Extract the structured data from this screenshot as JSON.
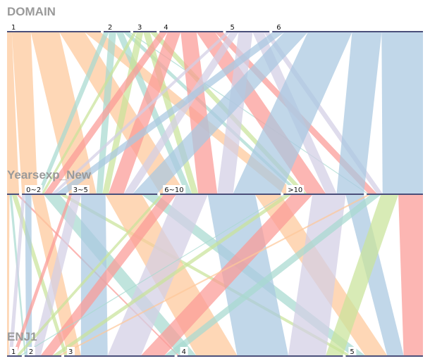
{
  "chart_data": {
    "type": "parallel-sets",
    "dimensions": [
      {
        "name": "DOMAIN",
        "categories": [
          "1",
          "2",
          "3",
          "4",
          "5",
          "6"
        ],
        "shares": [
          0.28,
          0.08,
          0.07,
          0.19,
          0.13,
          0.45
        ]
      },
      {
        "name": "Yearsexp_New",
        "categories": [
          "",
          "0~2",
          "3~5",
          "6~10",
          ">10",
          ""
        ],
        "shares": [
          0.03,
          0.11,
          0.22,
          0.3,
          0.2,
          0.14
        ]
      },
      {
        "name": "ENJ1",
        "categories": [
          "1",
          "2",
          "3",
          "4",
          "5"
        ],
        "shares": [
          0.04,
          0.1,
          0.3,
          0.45,
          0.21
        ]
      }
    ],
    "colors": {
      "1": "#fdc89a",
      "2": "#a7dad0",
      "3": "#c9e39a",
      "4": "#fb9a96",
      "5": "#d2cfe4",
      "6": "#a9c8e0"
    },
    "flows_domain_years": [
      [
        0,
        0,
        3
      ],
      [
        0,
        1,
        12
      ],
      [
        0,
        2,
        18
      ],
      [
        0,
        3,
        16
      ],
      [
        0,
        4,
        10
      ],
      [
        1,
        1,
        3
      ],
      [
        1,
        2,
        4
      ],
      [
        1,
        3,
        4
      ],
      [
        1,
        4,
        3
      ],
      [
        1,
        5,
        1
      ],
      [
        2,
        1,
        2
      ],
      [
        2,
        2,
        4
      ],
      [
        2,
        3,
        4
      ],
      [
        2,
        4,
        4
      ],
      [
        3,
        1,
        6
      ],
      [
        3,
        2,
        10
      ],
      [
        3,
        3,
        12
      ],
      [
        3,
        4,
        14
      ],
      [
        3,
        5,
        6
      ],
      [
        4,
        1,
        3
      ],
      [
        4,
        2,
        6
      ],
      [
        4,
        3,
        10
      ],
      [
        4,
        4,
        8
      ],
      [
        4,
        5,
        4
      ],
      [
        5,
        1,
        8
      ],
      [
        5,
        2,
        16
      ],
      [
        5,
        3,
        30
      ],
      [
        5,
        4,
        20
      ],
      [
        5,
        5,
        28
      ]
    ],
    "flows_years_enj": [
      [
        0,
        0,
        1
      ],
      [
        0,
        1,
        1
      ],
      [
        0,
        2,
        2
      ],
      [
        0,
        3,
        1
      ],
      [
        1,
        0,
        2
      ],
      [
        1,
        1,
        4
      ],
      [
        1,
        2,
        8
      ],
      [
        1,
        3,
        10
      ],
      [
        1,
        4,
        4
      ],
      [
        2,
        0,
        2
      ],
      [
        2,
        1,
        6
      ],
      [
        2,
        2,
        16
      ],
      [
        2,
        3,
        24
      ],
      [
        2,
        4,
        10
      ],
      [
        3,
        0,
        2
      ],
      [
        3,
        1,
        8
      ],
      [
        3,
        2,
        20
      ],
      [
        3,
        3,
        30
      ],
      [
        3,
        4,
        16
      ],
      [
        4,
        0,
        1
      ],
      [
        4,
        1,
        4
      ],
      [
        4,
        2,
        14
      ],
      [
        4,
        3,
        22
      ],
      [
        4,
        4,
        12
      ],
      [
        5,
        1,
        2
      ],
      [
        5,
        2,
        6
      ],
      [
        5,
        3,
        10
      ],
      [
        5,
        4,
        14
      ]
    ]
  }
}
